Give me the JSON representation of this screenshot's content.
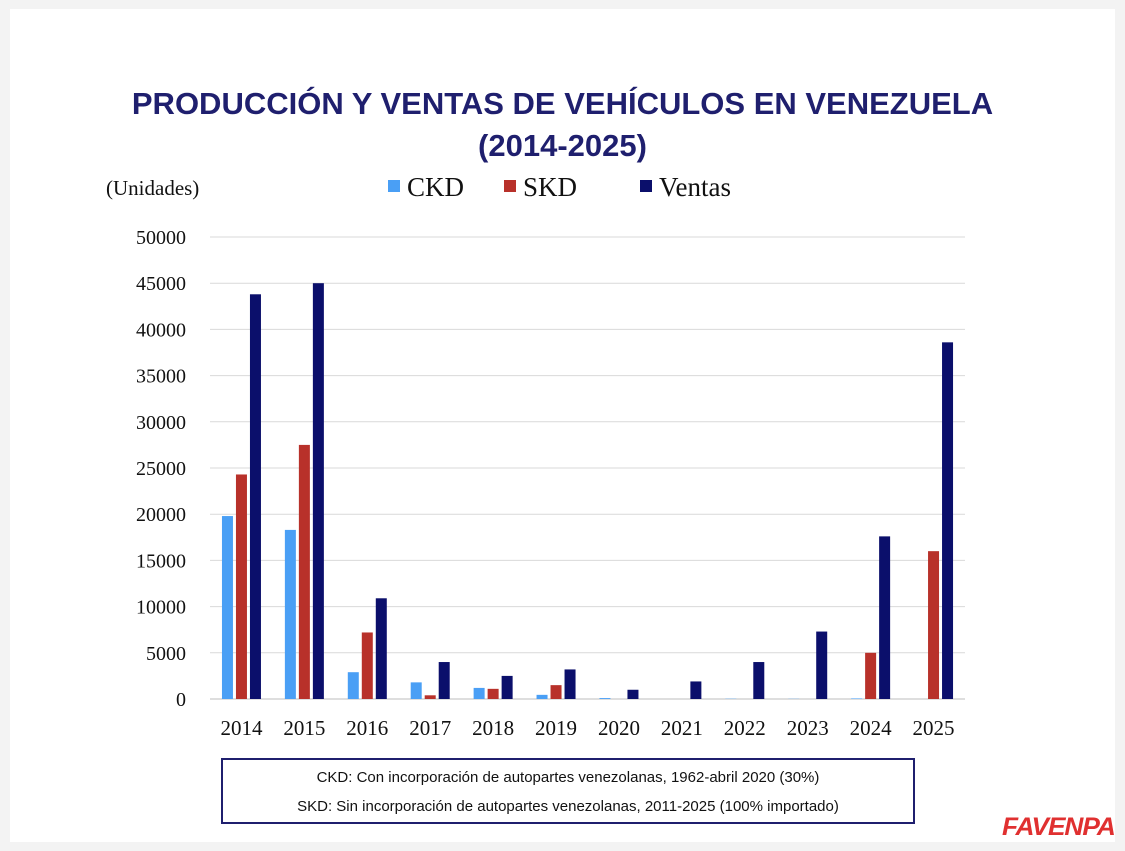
{
  "title_line1": "PRODUCCIÓN Y VENTAS DE VEHÍCULOS EN VENEZUELA",
  "title_line2": "(2014-2025)",
  "notes": {
    "ckd": "CKD: Con incorporación de autopartes venezolanas, 1962-abril 2020 (30%)",
    "skd": "SKD: Sin incorporación de autopartes venezolanas, 2011-2025 (100% importado)"
  },
  "logo_text": "FAVENPA",
  "chart_data": {
    "type": "bar",
    "ylabel": "(Unidades)",
    "categories": [
      "2014",
      "2015",
      "2016",
      "2017",
      "2018",
      "2019",
      "2020",
      "2021",
      "2022",
      "2023",
      "2024",
      "2025"
    ],
    "ylim": [
      0,
      50000
    ],
    "yticks": [
      0,
      5000,
      10000,
      15000,
      20000,
      25000,
      30000,
      35000,
      40000,
      45000,
      50000
    ],
    "grid": true,
    "legend_position": "top",
    "series": [
      {
        "name": "CKD",
        "color": "#4a9ff5",
        "values": [
          19800,
          18300,
          2900,
          1800,
          1200,
          450,
          100,
          0,
          30,
          20,
          60,
          0
        ]
      },
      {
        "name": "SKD",
        "color": "#b8312a",
        "values": [
          24300,
          27500,
          7200,
          400,
          1100,
          1500,
          0,
          0,
          0,
          0,
          5000,
          16000
        ]
      },
      {
        "name": "Ventas",
        "color": "#0b0f6b",
        "values": [
          43800,
          45000,
          10900,
          4000,
          2500,
          3200,
          1000,
          1900,
          4000,
          7300,
          17600,
          38600
        ]
      }
    ]
  }
}
